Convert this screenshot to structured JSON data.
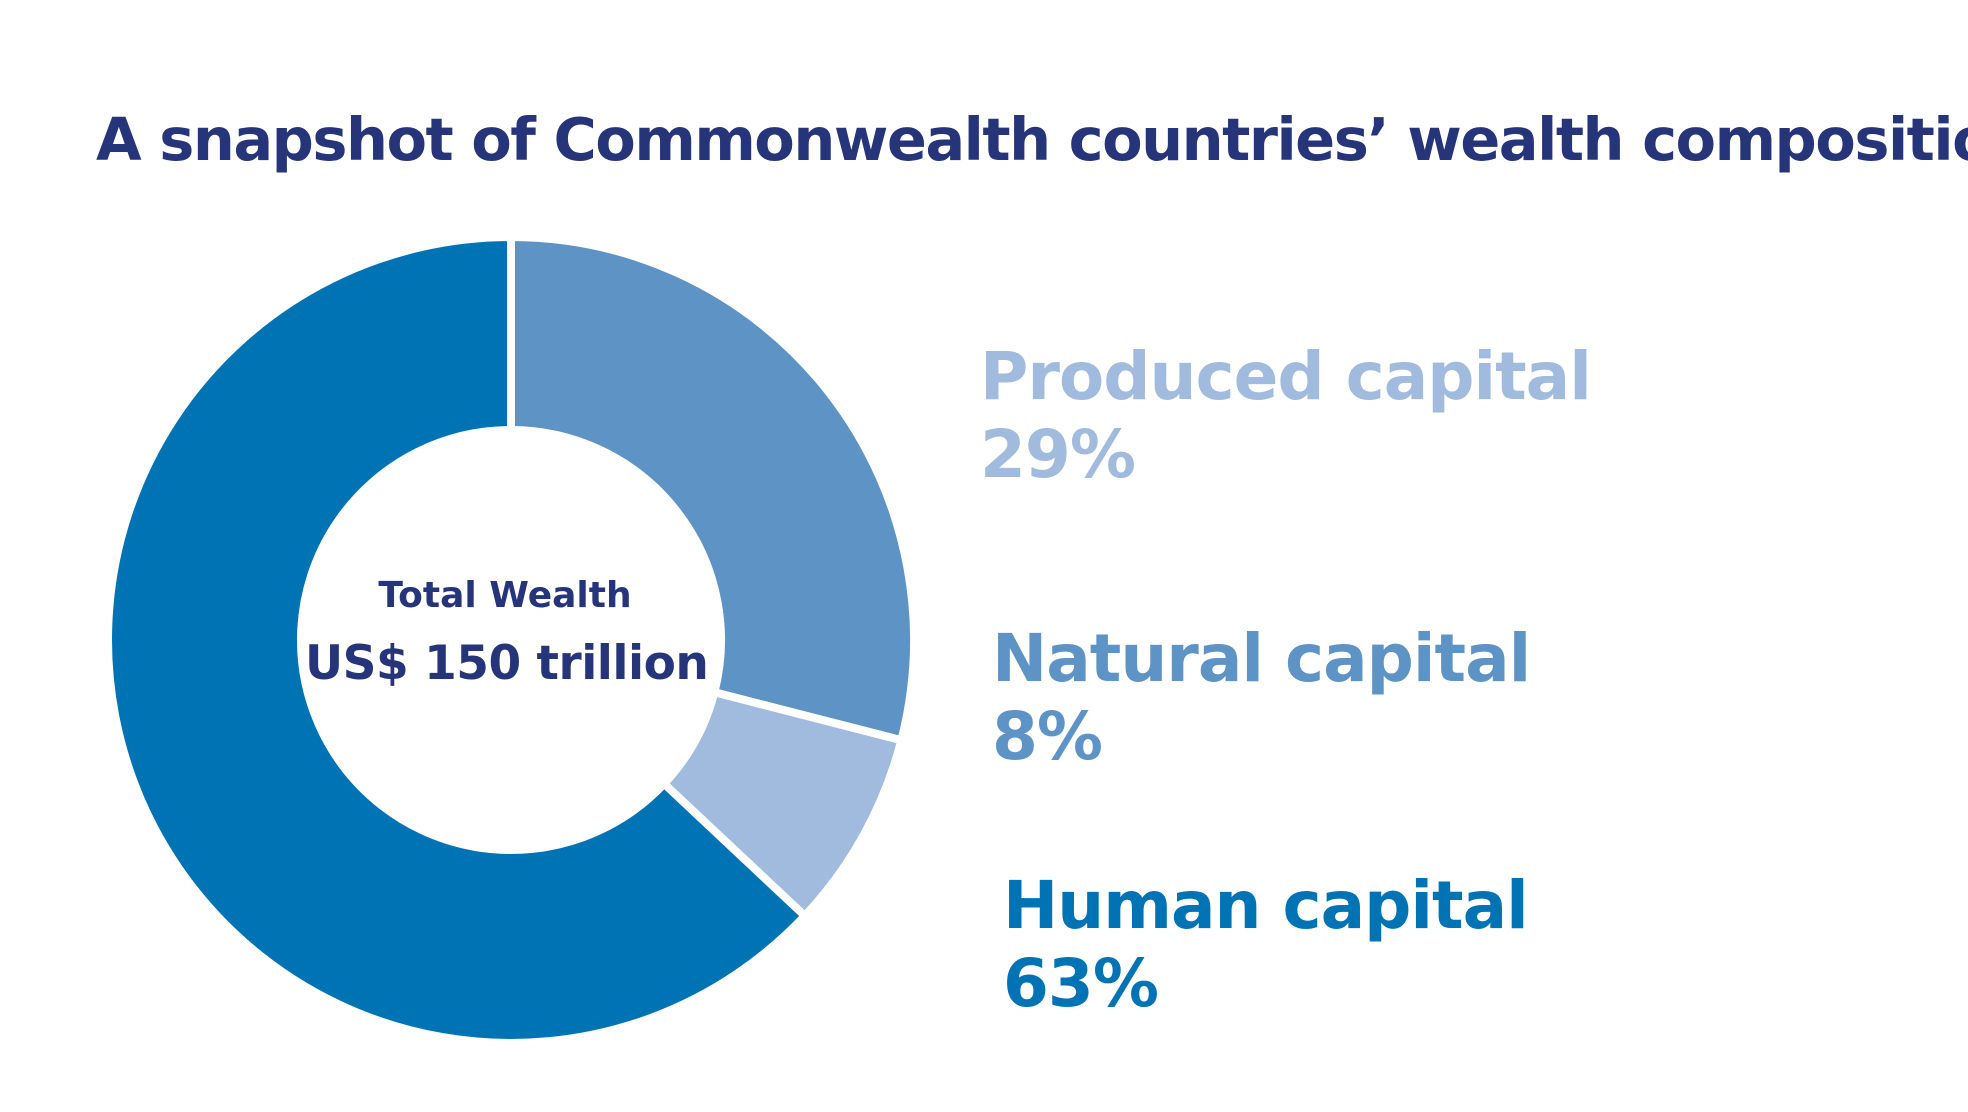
{
  "chart_data": {
    "type": "pie",
    "title": "A snapshot of Commonwealth countries’ wealth composition",
    "donut": true,
    "center": {
      "caption": "Total Wealth",
      "value": "US$ 150 trillion"
    },
    "categories": [
      "Produced capital",
      "Natural capital",
      "Human capital"
    ],
    "values": [
      29,
      8,
      63
    ],
    "value_labels": [
      "29%",
      "8%",
      "63%"
    ],
    "slice_colors": [
      "#5e93c6",
      "#a0bbdd",
      "#0073b5"
    ],
    "legend_colors": [
      "#a0bbdd",
      "#5e93c6",
      "#0073b5"
    ],
    "legend_placement": "right"
  },
  "colors": {
    "title": "#263479",
    "center_text": "#263479",
    "background": "#ffffff"
  }
}
